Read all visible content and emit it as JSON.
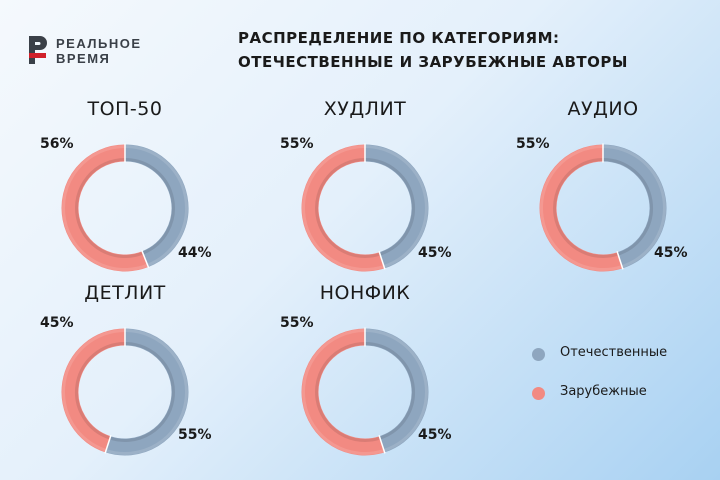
{
  "brand": {
    "line1": "РЕАЛЬНОЕ",
    "line2": "ВРЕМЯ",
    "color": "#d0202a"
  },
  "headline": {
    "line1": "РАСПРЕДЕЛЕНИЕ ПО КАТЕГОРИЯМ:",
    "line2": "ОТЕЧЕСТВЕННЫЕ И ЗАРУБЕЖНЫЕ АВТОРЫ"
  },
  "colors": {
    "domestic": "#8ea6bf",
    "foreign": "#f28a82"
  },
  "chart_data": {
    "type": "pie",
    "series_names": [
      "Отечественные",
      "Зарубежные"
    ],
    "legend_position": "right",
    "charts": [
      {
        "title": "ТОП-50",
        "domestic": 44,
        "foreign": 56,
        "domestic_label": "44%",
        "foreign_label": "56%"
      },
      {
        "title": "ХУДЛИТ",
        "domestic": 45,
        "foreign": 55,
        "domestic_label": "45%",
        "foreign_label": "55%"
      },
      {
        "title": "АУДИО",
        "domestic": 45,
        "foreign": 55,
        "domestic_label": "45%",
        "foreign_label": "55%"
      },
      {
        "title": "ДЕТЛИТ",
        "domestic": 55,
        "foreign": 45,
        "domestic_label": "55%",
        "foreign_label": "45%"
      },
      {
        "title": "НОНФИК",
        "domestic": 45,
        "foreign": 55,
        "domestic_label": "45%",
        "foreign_label": "55%"
      }
    ]
  }
}
